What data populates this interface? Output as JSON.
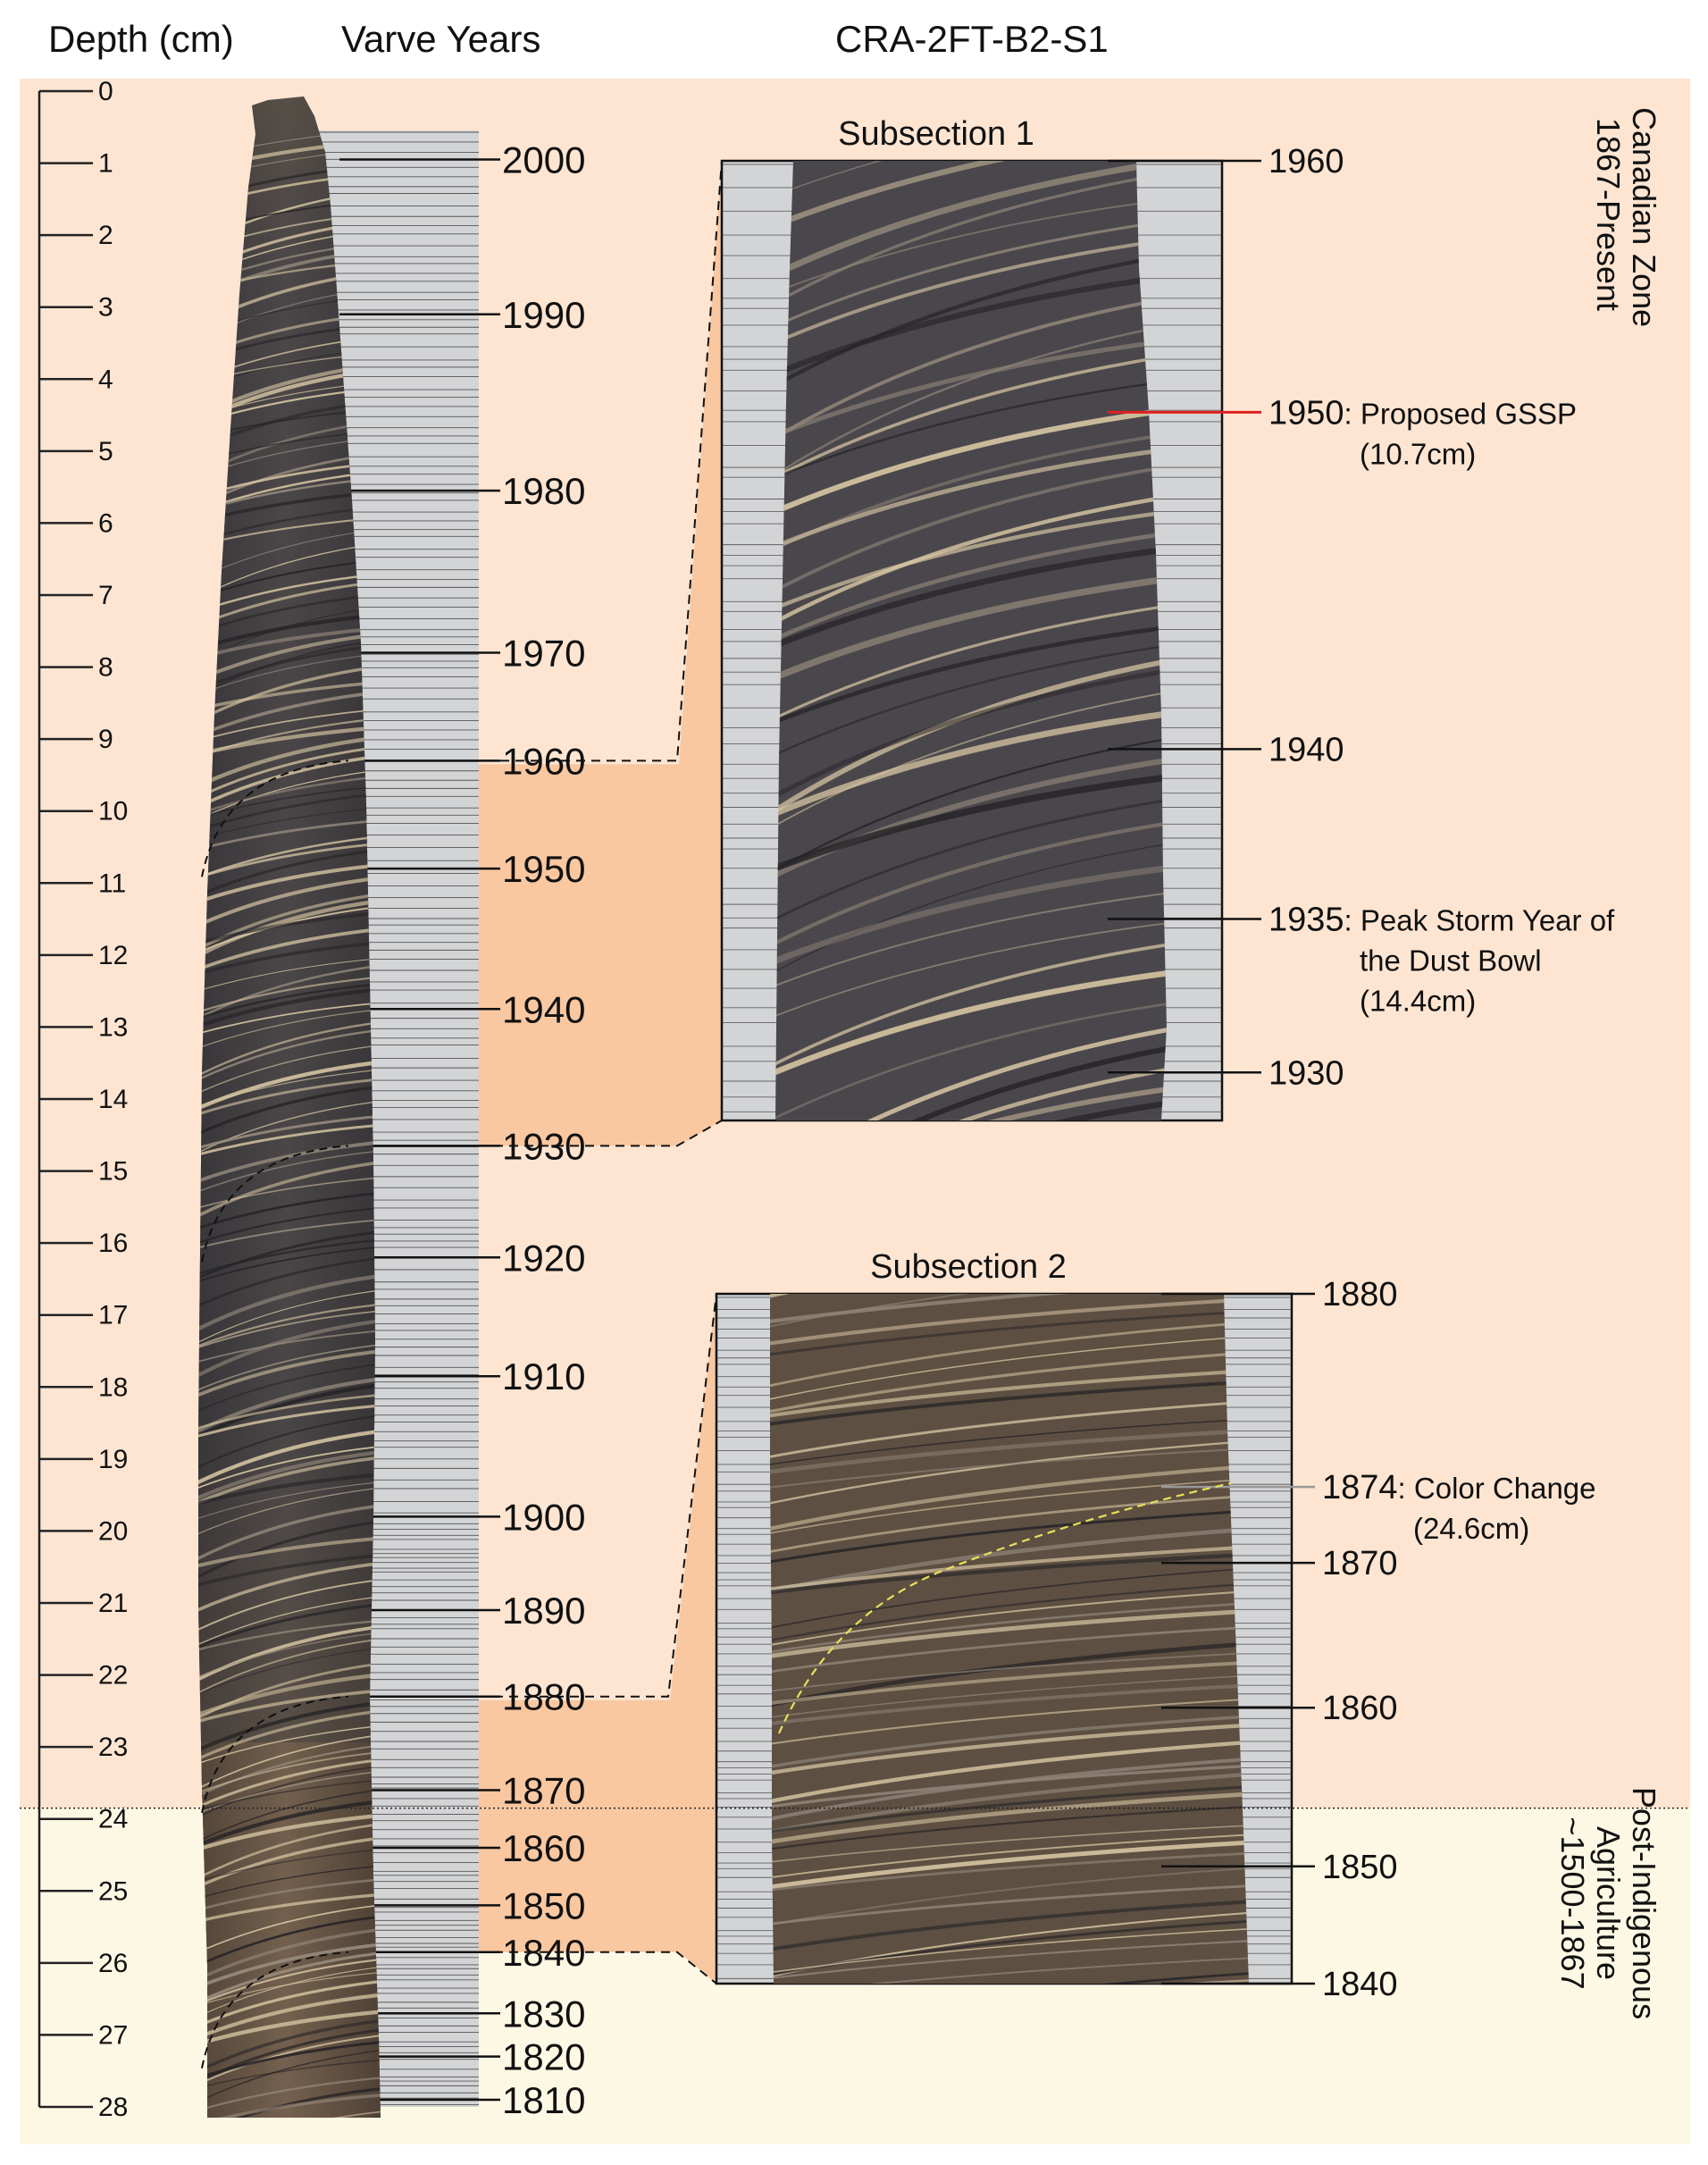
{
  "headers": {
    "depth": "Depth (cm)",
    "varve": "Varve Years",
    "core": "CRA-2FT-B2-S1"
  },
  "zones": [
    {
      "line1": "Canadian Zone",
      "line2": "1867-Present",
      "color": "#fde5d2"
    },
    {
      "line1": "Post-Indigenous",
      "line2": "Agriculture",
      "line3": "~1500-1867",
      "color": "#fdf8e4"
    }
  ],
  "depth_scale": {
    "min": 0,
    "max": 28,
    "ticks": [
      "0",
      "1",
      "2",
      "3",
      "4",
      "5",
      "6",
      "7",
      "8",
      "9",
      "10",
      "11",
      "12",
      "13",
      "14",
      "15",
      "16",
      "17",
      "18",
      "19",
      "20",
      "21",
      "22",
      "23",
      "24",
      "25",
      "26",
      "27",
      "28"
    ]
  },
  "varve_years": [
    {
      "year": "2000",
      "depth": 0.95
    },
    {
      "year": "1990",
      "depth": 3.1
    },
    {
      "year": "1980",
      "depth": 5.55
    },
    {
      "year": "1970",
      "depth": 7.8
    },
    {
      "year": "1960",
      "depth": 9.3
    },
    {
      "year": "1950",
      "depth": 10.8
    },
    {
      "year": "1940",
      "depth": 12.75
    },
    {
      "year": "1930",
      "depth": 14.65
    },
    {
      "year": "1920",
      "depth": 16.2
    },
    {
      "year": "1910",
      "depth": 17.85
    },
    {
      "year": "1900",
      "depth": 19.8
    },
    {
      "year": "1890",
      "depth": 21.1
    },
    {
      "year": "1880",
      "depth": 22.3
    },
    {
      "year": "1870",
      "depth": 23.6
    },
    {
      "year": "1860",
      "depth": 24.4
    },
    {
      "year": "1850",
      "depth": 25.2
    },
    {
      "year": "1840",
      "depth": 25.85
    },
    {
      "year": "1830",
      "depth": 26.7
    },
    {
      "year": "1820",
      "depth": 27.3
    },
    {
      "year": "1810",
      "depth": 27.9
    }
  ],
  "subsections": [
    {
      "title": "Subsection 1",
      "start_year": "1960",
      "end_year": "1930",
      "labels": [
        {
          "year": "1960",
          "note": "",
          "note2": "",
          "frac": 0.0
        },
        {
          "year": "1950",
          "note": ": Proposed GSSP",
          "note2": "(10.7cm)",
          "frac": 0.262,
          "color": "#e02020"
        },
        {
          "year": "1940",
          "note": "",
          "note2": "",
          "frac": 0.613
        },
        {
          "year": "1935",
          "note": ": Peak Storm Year of",
          "note2": "the Dust Bowl",
          "note3": "(14.4cm)",
          "frac": 0.79
        },
        {
          "year": "1930",
          "note": "",
          "note2": "",
          "frac": 0.95
        }
      ]
    },
    {
      "title": "Subsection 2",
      "start_year": "1880",
      "end_year": "1840",
      "labels": [
        {
          "year": "1880",
          "note": "",
          "note2": "",
          "frac": 0.0
        },
        {
          "year": "1874",
          "note": ": Color Change",
          "note2": "(24.6cm)",
          "frac": 0.28,
          "color": "#999999"
        },
        {
          "year": "1870",
          "note": "",
          "note2": "",
          "frac": 0.39
        },
        {
          "year": "1860",
          "note": "",
          "note2": "",
          "frac": 0.6
        },
        {
          "year": "1850",
          "note": "",
          "note2": "",
          "frac": 0.83
        },
        {
          "year": "1840",
          "note": "",
          "note2": "",
          "frac": 1.0
        }
      ]
    }
  ],
  "zone_boundary_depth": 23.85,
  "colors": {
    "highlight": "#f9c7a0",
    "gray": "#d3d4d6",
    "core_dark": "#3e3b3f",
    "core_light": "#d9c8a4",
    "core_brown": "#6b5845"
  }
}
